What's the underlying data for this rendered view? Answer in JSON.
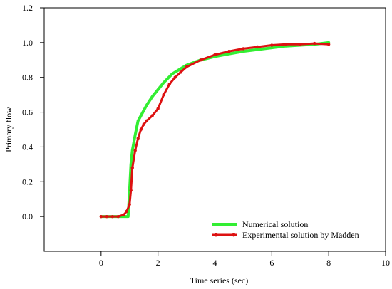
{
  "chart_data": {
    "type": "line",
    "xlabel": "Time series (sec)",
    "ylabel": "Primary flow",
    "xlim": [
      -2,
      10
    ],
    "ylim": [
      -0.2,
      1.2
    ],
    "xticks": [
      0,
      2,
      4,
      6,
      8,
      10
    ],
    "yticks": [
      0.0,
      0.2,
      0.4,
      0.6,
      0.8,
      1.0,
      1.2
    ],
    "xtick_labels": [
      "0",
      "2",
      "4",
      "6",
      "8",
      "10"
    ],
    "ytick_labels": [
      "0.0",
      "0.2",
      "0.4",
      "0.6",
      "0.8",
      "1.0",
      "1.2"
    ],
    "grid": false,
    "legend_position": "bottom-right",
    "series": [
      {
        "name": "Numerical solution",
        "color": "#33ee33",
        "x": [
          0,
          0.2,
          0.4,
          0.6,
          0.8,
          0.95,
          1.0,
          1.05,
          1.1,
          1.2,
          1.3,
          1.4,
          1.6,
          1.8,
          2.0,
          2.2,
          2.5,
          2.8,
          3.0,
          3.5,
          4.0,
          4.5,
          5.0,
          5.5,
          6.0,
          6.5,
          7.0,
          7.5,
          8.0
        ],
        "y": [
          0.0,
          0.0,
          0.0,
          0.0,
          0.0,
          0.0,
          0.15,
          0.3,
          0.38,
          0.47,
          0.55,
          0.58,
          0.64,
          0.69,
          0.73,
          0.77,
          0.82,
          0.85,
          0.87,
          0.9,
          0.92,
          0.935,
          0.95,
          0.96,
          0.97,
          0.98,
          0.985,
          0.99,
          1.0
        ]
      },
      {
        "name": "Experimental solution by Madden",
        "color": "#dd1111",
        "x": [
          0,
          0.2,
          0.4,
          0.6,
          0.8,
          0.9,
          1.0,
          1.05,
          1.1,
          1.2,
          1.3,
          1.4,
          1.5,
          1.6,
          1.8,
          2.0,
          2.2,
          2.4,
          2.6,
          2.8,
          3.0,
          3.5,
          4.0,
          4.5,
          5.0,
          5.5,
          6.0,
          6.5,
          7.0,
          7.5,
          8.0
        ],
        "y": [
          0.0,
          0.0,
          0.0,
          0.0,
          0.01,
          0.03,
          0.07,
          0.15,
          0.28,
          0.38,
          0.45,
          0.5,
          0.53,
          0.55,
          0.58,
          0.62,
          0.7,
          0.76,
          0.8,
          0.83,
          0.86,
          0.9,
          0.93,
          0.95,
          0.965,
          0.975,
          0.985,
          0.99,
          0.99,
          0.995,
          0.99
        ]
      }
    ]
  }
}
